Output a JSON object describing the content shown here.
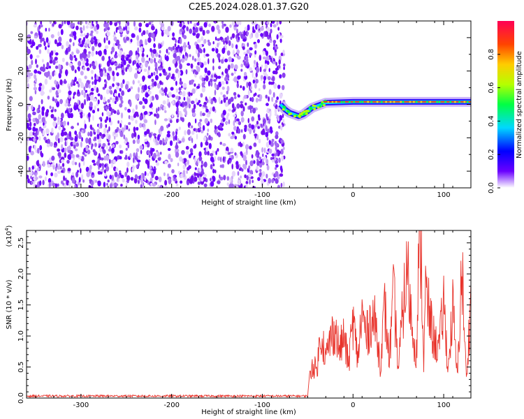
{
  "title": "C2E5.2024.028.01.37.G20",
  "chart_data": [
    {
      "type": "heatmap",
      "title": "",
      "xlabel": "Height of straight line (km)",
      "ylabel": "Frequency (Hz)",
      "xlim": [
        -360,
        130
      ],
      "ylim": [
        -50,
        50
      ],
      "x_ticks": [
        -300,
        -200,
        -100,
        0,
        100
      ],
      "y_ticks": [
        -40,
        -20,
        0,
        20,
        40
      ],
      "noise_region_x": [
        -360,
        -78
      ],
      "signal_trace": {
        "x": [
          -80,
          -75,
          -70,
          -65,
          -60,
          -55,
          -50,
          -45,
          -40,
          -35,
          -30,
          0,
          50,
          100,
          130
        ],
        "frequency": [
          0,
          -3,
          -5,
          -6,
          -7,
          -6,
          -4,
          -2,
          -1,
          0,
          1,
          1.5,
          1.5,
          1.5,
          1.5
        ]
      },
      "colorbar": {
        "label": "Normalized spectral amplitude",
        "range": [
          0,
          1
        ],
        "ticks": [
          0.0,
          0.2,
          0.4,
          0.6,
          0.8
        ],
        "colors": [
          "#ffffff",
          "#6a00ff",
          "#0000ff",
          "#00d8ff",
          "#00ff44",
          "#b5ff00",
          "#ffcc00",
          "#ff4400",
          "#ff0055"
        ]
      },
      "grid": false
    },
    {
      "type": "line",
      "title": "",
      "xlabel": "Height of straight line (km)",
      "ylabel": "SNR (10 * v/v)",
      "y_multiplier": "(x10",
      "y_multiplier_exp": "4",
      "xlim": [
        -360,
        130
      ],
      "ylim": [
        0,
        2.7
      ],
      "x_ticks": [
        -300,
        -200,
        -100,
        0,
        100
      ],
      "y_ticks": [
        0.0,
        0.5,
        1.0,
        1.5,
        2.0,
        2.5
      ],
      "series": [
        {
          "color": "#e8322a",
          "x": [
            -360,
            -300,
            -200,
            -100,
            -60,
            -50,
            -45,
            -40,
            -35,
            -30,
            -25,
            -20,
            -15,
            -10,
            -5,
            0,
            5,
            10,
            15,
            20,
            25,
            30,
            35,
            40,
            45,
            50,
            55,
            60,
            65,
            70,
            72,
            75,
            78,
            80,
            85,
            90,
            95,
            100,
            105,
            110,
            115,
            120,
            125,
            130
          ],
          "values": [
            0.03,
            0.03,
            0.03,
            0.03,
            0.04,
            0.15,
            0.6,
            0.5,
            1.2,
            0.7,
            1.05,
            1.25,
            0.85,
            1.1,
            0.6,
            1.4,
            0.7,
            1.5,
            1.1,
            1.45,
            1.3,
            0.6,
            1.6,
            0.7,
            1.85,
            0.5,
            1.6,
            2.3,
            1.3,
            0.8,
            2.1,
            2.75,
            0.6,
            1.9,
            1.4,
            1.0,
            0.9,
            1.7,
            0.5,
            1.6,
            0.35,
            2.35,
            0.3,
            1.85
          ]
        }
      ],
      "grid": false
    }
  ]
}
